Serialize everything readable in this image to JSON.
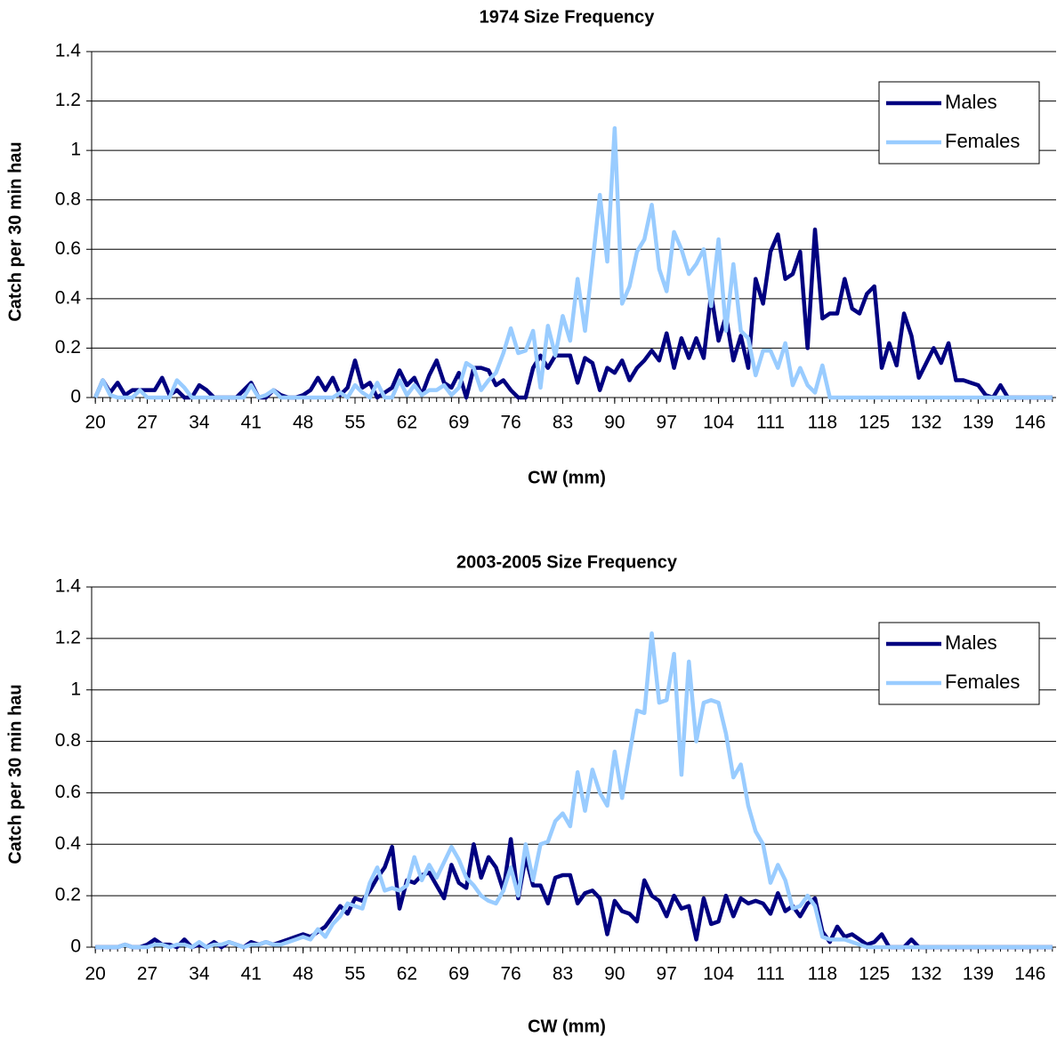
{
  "chart_data": [
    {
      "type": "line",
      "title": "1974 Size Frequency",
      "x_label": "CW (mm)",
      "y_label": "Catch per 30 min hau",
      "x": [
        20,
        21,
        22,
        23,
        24,
        25,
        26,
        27,
        28,
        29,
        30,
        31,
        32,
        33,
        34,
        35,
        36,
        37,
        38,
        39,
        40,
        41,
        42,
        43,
        44,
        45,
        46,
        47,
        48,
        49,
        50,
        51,
        52,
        53,
        54,
        55,
        56,
        57,
        58,
        59,
        60,
        61,
        62,
        63,
        64,
        65,
        66,
        67,
        68,
        69,
        70,
        71,
        72,
        73,
        74,
        75,
        76,
        77,
        78,
        79,
        80,
        81,
        82,
        83,
        84,
        85,
        86,
        87,
        88,
        89,
        90,
        91,
        92,
        93,
        94,
        95,
        96,
        97,
        98,
        99,
        100,
        101,
        102,
        103,
        104,
        105,
        106,
        107,
        108,
        109,
        110,
        111,
        112,
        113,
        114,
        115,
        116,
        117,
        118,
        119,
        120,
        121,
        122,
        123,
        124,
        125,
        126,
        127,
        128,
        129,
        130,
        131,
        132,
        133,
        134,
        135,
        136,
        137,
        138,
        139,
        140,
        141,
        142,
        143,
        144,
        145,
        146,
        147,
        148,
        149
      ],
      "xlim": [
        19.5,
        149.5
      ],
      "xticks": [
        20,
        27,
        34,
        41,
        48,
        55,
        62,
        69,
        76,
        83,
        90,
        97,
        104,
        111,
        118,
        125,
        132,
        139,
        146
      ],
      "ylim": [
        0,
        1.4
      ],
      "yticks": [
        0,
        0.2,
        0.4,
        0.6,
        0.8,
        1,
        1.2,
        1.4
      ],
      "grid": true,
      "legend": "upper right",
      "series": [
        {
          "name": "Males",
          "color": "#000080",
          "values": [
            0,
            0.07,
            0.02,
            0.06,
            0.01,
            0.03,
            0.03,
            0.03,
            0.03,
            0.08,
            0.01,
            0.03,
            0,
            0,
            0.05,
            0.03,
            0,
            0,
            0,
            0,
            0.03,
            0.06,
            0,
            0,
            0.03,
            0.01,
            0,
            0,
            0.01,
            0.03,
            0.08,
            0.03,
            0.08,
            0.01,
            0.04,
            0.15,
            0.04,
            0.06,
            0,
            0.02,
            0.04,
            0.11,
            0.05,
            0.08,
            0.01,
            0.09,
            0.15,
            0.06,
            0.04,
            0.1,
            0,
            0.12,
            0.12,
            0.11,
            0.05,
            0.07,
            0.03,
            0,
            0,
            0.12,
            0.17,
            0.12,
            0.17,
            0.17,
            0.17,
            0.06,
            0.16,
            0.14,
            0.03,
            0.12,
            0.1,
            0.15,
            0.07,
            0.12,
            0.15,
            0.19,
            0.15,
            0.26,
            0.12,
            0.24,
            0.16,
            0.24,
            0.16,
            0.42,
            0.23,
            0.33,
            0.15,
            0.25,
            0.12,
            0.48,
            0.38,
            0.59,
            0.66,
            0.48,
            0.5,
            0.59,
            0.2,
            0.68,
            0.32,
            0.34,
            0.34,
            0.48,
            0.36,
            0.34,
            0.42,
            0.45,
            0.12,
            0.22,
            0.13,
            0.34,
            0.25,
            0.08,
            0.14,
            0.2,
            0.14,
            0.22,
            0.07,
            0.07,
            0.06,
            0.05,
            0.01,
            0,
            0.05,
            0,
            0,
            0,
            0,
            0,
            0,
            0
          ]
        },
        {
          "name": "Females",
          "color": "#99ccff",
          "values": [
            0,
            0.07,
            0.01,
            0,
            0,
            0,
            0.03,
            0,
            0,
            0,
            0,
            0.07,
            0.04,
            0,
            0,
            0,
            0,
            0,
            0,
            0,
            0,
            0.05,
            0,
            0.01,
            0.03,
            0,
            0,
            0,
            0,
            0,
            0,
            0,
            0,
            0.02,
            0,
            0.05,
            0.02,
            0,
            0.06,
            0,
            0,
            0.07,
            0.01,
            0.05,
            0.01,
            0.03,
            0.03,
            0.05,
            0.01,
            0.04,
            0.14,
            0.12,
            0.03,
            0.07,
            0.1,
            0.18,
            0.28,
            0.18,
            0.19,
            0.27,
            0.04,
            0.29,
            0.17,
            0.33,
            0.23,
            0.48,
            0.27,
            0.54,
            0.82,
            0.55,
            1.09,
            0.38,
            0.45,
            0.59,
            0.64,
            0.78,
            0.52,
            0.43,
            0.67,
            0.6,
            0.5,
            0.54,
            0.6,
            0.37,
            0.64,
            0.27,
            0.54,
            0.27,
            0.24,
            0.09,
            0.19,
            0.19,
            0.12,
            0.22,
            0.05,
            0.12,
            0.05,
            0.02,
            0.13,
            0,
            0,
            0,
            0,
            0,
            0,
            0,
            0,
            0,
            0,
            0,
            0,
            0,
            0,
            0,
            0,
            0,
            0,
            0,
            0,
            0,
            0,
            0,
            0,
            0,
            0,
            0,
            0,
            0,
            0,
            0
          ]
        }
      ]
    },
    {
      "type": "line",
      "title": "2003-2005 Size Frequency",
      "x_label": "CW (mm)",
      "y_label": "Catch per 30 min hau",
      "x": [
        20,
        21,
        22,
        23,
        24,
        25,
        26,
        27,
        28,
        29,
        30,
        31,
        32,
        33,
        34,
        35,
        36,
        37,
        38,
        39,
        40,
        41,
        42,
        43,
        44,
        45,
        46,
        47,
        48,
        49,
        50,
        51,
        52,
        53,
        54,
        55,
        56,
        57,
        58,
        59,
        60,
        61,
        62,
        63,
        64,
        65,
        66,
        67,
        68,
        69,
        70,
        71,
        72,
        73,
        74,
        75,
        76,
        77,
        78,
        79,
        80,
        81,
        82,
        83,
        84,
        85,
        86,
        87,
        88,
        89,
        90,
        91,
        92,
        93,
        94,
        95,
        96,
        97,
        98,
        99,
        100,
        101,
        102,
        103,
        104,
        105,
        106,
        107,
        108,
        109,
        110,
        111,
        112,
        113,
        114,
        115,
        116,
        117,
        118,
        119,
        120,
        121,
        122,
        123,
        124,
        125,
        126,
        127,
        128,
        129,
        130,
        131,
        132,
        133,
        134,
        135,
        136,
        137,
        138,
        139,
        140,
        141,
        142,
        143,
        144,
        145,
        146,
        147,
        148,
        149
      ],
      "xlim": [
        19.5,
        149.5
      ],
      "xticks": [
        20,
        27,
        34,
        41,
        48,
        55,
        62,
        69,
        76,
        83,
        90,
        97,
        104,
        111,
        118,
        125,
        132,
        139,
        146
      ],
      "ylim": [
        0,
        1.4
      ],
      "yticks": [
        0,
        0.2,
        0.4,
        0.6,
        0.8,
        1,
        1.2,
        1.4
      ],
      "grid": true,
      "legend": "upper right",
      "series": [
        {
          "name": "Males",
          "color": "#000080",
          "values": [
            0,
            0,
            0,
            0,
            0.01,
            0,
            0,
            0.01,
            0.03,
            0.01,
            0.01,
            0,
            0.03,
            0,
            0.01,
            0,
            0.02,
            0,
            0.02,
            0.01,
            0,
            0.02,
            0.01,
            0.02,
            0.01,
            0.02,
            0.03,
            0.04,
            0.05,
            0.04,
            0.06,
            0.08,
            0.12,
            0.16,
            0.13,
            0.19,
            0.18,
            0.22,
            0.27,
            0.31,
            0.39,
            0.15,
            0.26,
            0.25,
            0.28,
            0.29,
            0.24,
            0.19,
            0.32,
            0.25,
            0.23,
            0.4,
            0.27,
            0.35,
            0.31,
            0.22,
            0.42,
            0.19,
            0.35,
            0.24,
            0.24,
            0.17,
            0.27,
            0.28,
            0.28,
            0.17,
            0.21,
            0.22,
            0.19,
            0.05,
            0.18,
            0.14,
            0.13,
            0.1,
            0.26,
            0.2,
            0.18,
            0.12,
            0.2,
            0.15,
            0.16,
            0.03,
            0.19,
            0.09,
            0.1,
            0.2,
            0.12,
            0.19,
            0.17,
            0.18,
            0.17,
            0.13,
            0.21,
            0.14,
            0.16,
            0.12,
            0.17,
            0.19,
            0.06,
            0.02,
            0.08,
            0.04,
            0.05,
            0.03,
            0.01,
            0.02,
            0.05,
            0,
            0,
            0,
            0.03,
            0,
            0,
            0,
            0,
            0,
            0,
            0,
            0,
            0,
            0,
            0,
            0,
            0,
            0,
            0,
            0,
            0,
            0,
            0
          ]
        },
        {
          "name": "Females",
          "color": "#99ccff",
          "values": [
            0,
            0,
            0,
            0,
            0.01,
            0,
            0,
            0,
            0.01,
            0.01,
            0,
            0.01,
            0.01,
            0,
            0.02,
            0,
            0.01,
            0.01,
            0.02,
            0.01,
            0,
            0.01,
            0.01,
            0.02,
            0.01,
            0.01,
            0.02,
            0.03,
            0.04,
            0.03,
            0.07,
            0.04,
            0.09,
            0.12,
            0.17,
            0.16,
            0.15,
            0.25,
            0.31,
            0.22,
            0.23,
            0.22,
            0.24,
            0.35,
            0.26,
            0.32,
            0.27,
            0.33,
            0.39,
            0.34,
            0.27,
            0.24,
            0.2,
            0.18,
            0.17,
            0.22,
            0.31,
            0.2,
            0.4,
            0.26,
            0.4,
            0.41,
            0.49,
            0.52,
            0.47,
            0.68,
            0.53,
            0.69,
            0.6,
            0.55,
            0.76,
            0.58,
            0.75,
            0.92,
            0.91,
            1.22,
            0.95,
            0.96,
            1.14,
            0.67,
            1.11,
            0.8,
            0.95,
            0.96,
            0.95,
            0.83,
            0.66,
            0.71,
            0.55,
            0.45,
            0.4,
            0.25,
            0.32,
            0.26,
            0.15,
            0.16,
            0.2,
            0.16,
            0.04,
            0.03,
            0.03,
            0.03,
            0.02,
            0.01,
            0,
            0,
            0,
            0,
            0,
            0,
            0,
            0,
            0,
            0,
            0,
            0,
            0,
            0,
            0,
            0,
            0,
            0,
            0,
            0,
            0,
            0,
            0,
            0,
            0,
            0
          ]
        }
      ]
    }
  ]
}
